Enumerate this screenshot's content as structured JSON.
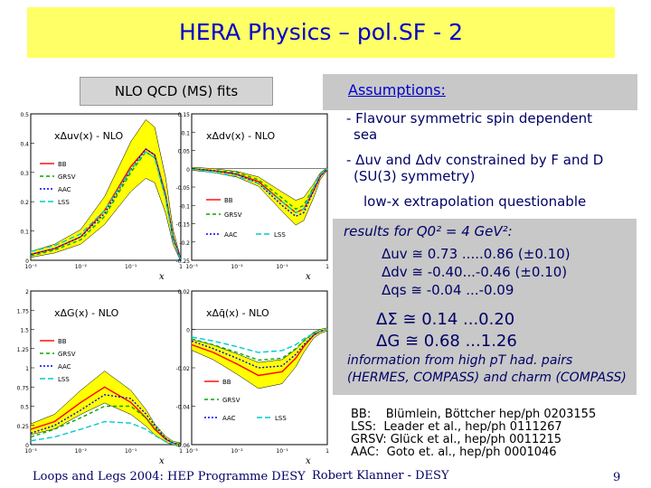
{
  "title": "HERA Physics – pol.SF - 2",
  "left_heading": "NLO QCD (MS) fits",
  "assumptions": {
    "heading": "Assumptions:",
    "item1": "- Flavour symmetric spin dependent",
    "item1b": "sea",
    "item2": "- Δuv and Δdv constrained by F and D",
    "item2b": "(SU(3) symmetry)",
    "note": "low-x extrapolation questionable"
  },
  "results": {
    "label": "results for Q0² = 4 GeV²:",
    "lines": [
      "Δuv ≅  0.73 .....0.86 (±0.10)",
      "Δdv ≅ -0.40...-0.46  (±0.10)",
      "Δqs ≅ -0.04 ...-0.09"
    ],
    "big": [
      "ΔΣ  ≅ 0.14 ...0.20",
      "ΔG  ≅ 0.68 ...1.26"
    ],
    "info": "information from high pT had. pairs (HERMES, COMPASS) and charm (COMPASS)"
  },
  "references": [
    "BB:    Blümlein, Böttcher hep/ph 0203155",
    "LSS:  Leader et al., hep/ph 0111267",
    "GRSV: Glück et al., hep/ph 0011215",
    "AAC:  Goto et. al., hep/ph 0001046"
  ],
  "footer": {
    "left": "Loops and Legs 2004: HEP Programme DESY",
    "middle": "Robert Klanner - DESY",
    "page": "9"
  },
  "colors": {
    "BB": "#ff0000",
    "GRSV": "#00aa00",
    "AAC": "#0000ff",
    "LSS": "#00cccc",
    "band": "#ffff00"
  },
  "chart_data": [
    {
      "type": "line",
      "title": "xΔuv(x) - NLO",
      "xlabel": "x",
      "xscale": "log",
      "xlim": [
        0.001,
        1
      ],
      "ylim": [
        0,
        0.5
      ],
      "yticks": [
        "0.5",
        "0.4",
        "0.3",
        "0.2",
        "0.1",
        "0"
      ],
      "xticks": [
        "10⁻³",
        "10⁻²",
        "10⁻¹",
        "1"
      ],
      "legend": [
        "BB",
        "GRSV",
        "AAC",
        "LSS"
      ],
      "x": [
        0.001,
        0.003,
        0.01,
        0.03,
        0.1,
        0.2,
        0.3,
        0.5,
        0.7,
        1
      ],
      "series": [
        {
          "name": "BB",
          "values": [
            0.02,
            0.04,
            0.08,
            0.17,
            0.32,
            0.38,
            0.36,
            0.22,
            0.08,
            0
          ]
        },
        {
          "name": "GRSV",
          "values": [
            0.015,
            0.035,
            0.07,
            0.15,
            0.3,
            0.37,
            0.35,
            0.21,
            0.07,
            0
          ]
        },
        {
          "name": "AAC",
          "values": [
            0.02,
            0.04,
            0.08,
            0.16,
            0.31,
            0.38,
            0.36,
            0.22,
            0.08,
            0
          ]
        },
        {
          "name": "LSS",
          "values": [
            0.03,
            0.05,
            0.09,
            0.17,
            0.31,
            0.37,
            0.35,
            0.21,
            0.07,
            0
          ]
        }
      ]
    },
    {
      "type": "line",
      "title": "xΔdv(x) - NLO",
      "xlabel": "x",
      "xscale": "log",
      "xlim": [
        0.001,
        1
      ],
      "ylim": [
        -0.25,
        0.15
      ],
      "yticks": [
        "0.15",
        "0.1",
        "0.05",
        "0",
        "-0.05",
        "-0.1",
        "-0.15",
        "-0.2",
        "-0.25"
      ],
      "xticks": [
        "10⁻³",
        "10⁻²",
        "10⁻¹",
        "1"
      ],
      "legend": [
        "BB",
        "GRSV",
        "AAC",
        "LSS"
      ],
      "x": [
        0.001,
        0.003,
        0.01,
        0.03,
        0.1,
        0.2,
        0.3,
        0.5,
        0.7,
        1
      ],
      "series": [
        {
          "name": "BB",
          "values": [
            0,
            -0.005,
            -0.015,
            -0.035,
            -0.09,
            -0.12,
            -0.11,
            -0.06,
            -0.02,
            0
          ]
        },
        {
          "name": "GRSV",
          "values": [
            0,
            -0.005,
            -0.01,
            -0.03,
            -0.08,
            -0.11,
            -0.1,
            -0.05,
            -0.015,
            0
          ]
        },
        {
          "name": "AAC",
          "values": [
            0,
            -0.005,
            -0.015,
            -0.04,
            -0.1,
            -0.13,
            -0.12,
            -0.06,
            -0.02,
            0
          ]
        },
        {
          "name": "LSS",
          "values": [
            0,
            -0.01,
            -0.02,
            -0.04,
            -0.09,
            -0.12,
            -0.11,
            -0.05,
            -0.015,
            0
          ]
        }
      ]
    },
    {
      "type": "line",
      "title": "xΔG(x) - NLO",
      "xlabel": "x",
      "xscale": "log",
      "xlim": [
        0.001,
        1
      ],
      "ylim": [
        0,
        2
      ],
      "yticks": [
        "2",
        "1.75",
        "1.5",
        "1.25",
        "1",
        "0.75",
        "0.5",
        "0.25",
        "0"
      ],
      "xticks": [
        "10⁻³",
        "10⁻²",
        "10⁻¹",
        "1"
      ],
      "legend": [
        "BB",
        "GRSV",
        "AAC",
        "LSS"
      ],
      "x": [
        0.001,
        0.003,
        0.01,
        0.03,
        0.1,
        0.2,
        0.3,
        0.5,
        0.7,
        1
      ],
      "series": [
        {
          "name": "BB",
          "values": [
            0.2,
            0.3,
            0.55,
            0.75,
            0.55,
            0.35,
            0.2,
            0.07,
            0.02,
            0
          ]
        },
        {
          "name": "GRSV",
          "values": [
            0.1,
            0.2,
            0.35,
            0.5,
            0.5,
            0.35,
            0.22,
            0.08,
            0.02,
            0
          ]
        },
        {
          "name": "AAC",
          "values": [
            0.15,
            0.25,
            0.45,
            0.65,
            0.6,
            0.4,
            0.25,
            0.08,
            0.02,
            0
          ]
        },
        {
          "name": "LSS",
          "values": [
            0.05,
            0.1,
            0.2,
            0.3,
            0.28,
            0.2,
            0.12,
            0.04,
            0.01,
            0
          ]
        }
      ]
    },
    {
      "type": "line",
      "title": "xΔq̄(x) - NLO",
      "xlabel": "x",
      "xscale": "log",
      "xlim": [
        0.001,
        1
      ],
      "ylim": [
        -0.06,
        0.02
      ],
      "yticks": [
        "0.02",
        "0",
        "-0.02",
        "-0.04",
        "-0.06"
      ],
      "xticks": [
        "10⁻³",
        "10⁻²",
        "10⁻¹",
        "1"
      ],
      "legend": [
        "BB",
        "GRSV",
        "AAC",
        "LSS"
      ],
      "x": [
        0.001,
        0.003,
        0.01,
        0.03,
        0.1,
        0.2,
        0.3,
        0.5,
        0.7,
        1
      ],
      "series": [
        {
          "name": "BB",
          "values": [
            -0.008,
            -0.012,
            -0.018,
            -0.024,
            -0.022,
            -0.015,
            -0.009,
            -0.003,
            -0.001,
            0
          ]
        },
        {
          "name": "GRSV",
          "values": [
            -0.005,
            -0.008,
            -0.012,
            -0.016,
            -0.015,
            -0.01,
            -0.006,
            -0.002,
            -0.001,
            0
          ]
        },
        {
          "name": "AAC",
          "values": [
            -0.006,
            -0.01,
            -0.015,
            -0.02,
            -0.019,
            -0.013,
            -0.008,
            -0.003,
            -0.001,
            0
          ]
        },
        {
          "name": "LSS",
          "values": [
            -0.004,
            -0.006,
            -0.009,
            -0.012,
            -0.011,
            -0.008,
            -0.005,
            -0.002,
            -0.001,
            0
          ]
        }
      ]
    }
  ]
}
